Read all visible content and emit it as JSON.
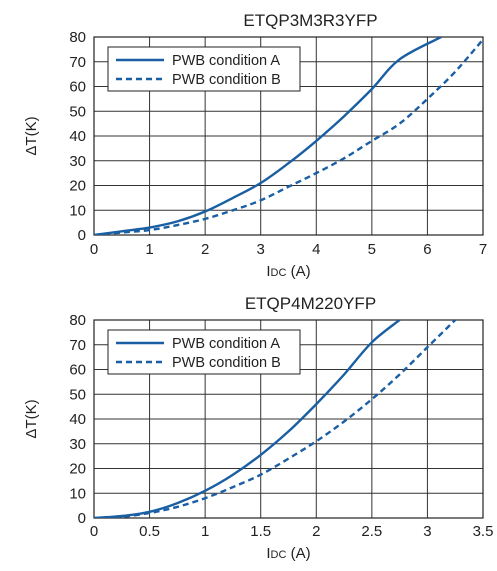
{
  "chart_data": [
    {
      "type": "line",
      "title": "ETQP3M3R3YFP",
      "xlabel": "IDC (A)",
      "xlabel_main": "I",
      "xlabel_sub": "DC",
      "xlabel_unit": " (A)",
      "ylabel": "ΔT(K)",
      "xlim": [
        0,
        7
      ],
      "ylim": [
        0,
        80
      ],
      "x_ticks": [
        0,
        1,
        2,
        3,
        4,
        5,
        6,
        7
      ],
      "y_ticks": [
        0,
        10,
        20,
        30,
        40,
        50,
        60,
        70,
        80
      ],
      "grid": true,
      "legend_position": "top-left",
      "series": [
        {
          "name": "PWB condition A",
          "style": "solid",
          "color": "#1a5fa3",
          "x": [
            0,
            0.5,
            1,
            1.5,
            2,
            2.5,
            3,
            3.5,
            4,
            4.5,
            5,
            5.5,
            6.25
          ],
          "y": [
            0,
            1.5,
            3,
            5.5,
            9.5,
            15,
            21,
            29,
            38,
            48,
            59,
            71,
            80
          ]
        },
        {
          "name": "PWB condition B",
          "style": "dashed",
          "color": "#1a5fa3",
          "x": [
            0,
            0.5,
            1,
            1.5,
            2,
            2.5,
            3,
            3.5,
            4,
            4.5,
            5,
            5.5,
            6,
            6.5,
            7
          ],
          "y": [
            0,
            1,
            2,
            4,
            6.5,
            10,
            14,
            19.5,
            25,
            31,
            38,
            45,
            55,
            66,
            79
          ]
        }
      ]
    },
    {
      "type": "line",
      "title": "ETQP4M220YFP",
      "xlabel": "IDC (A)",
      "xlabel_main": "I",
      "xlabel_sub": "DC",
      "xlabel_unit": " (A)",
      "ylabel": "ΔT(K)",
      "xlim": [
        0,
        3.5
      ],
      "ylim": [
        0,
        80
      ],
      "x_ticks": [
        0,
        0.5,
        1,
        1.5,
        2,
        2.5,
        3,
        3.5
      ],
      "y_ticks": [
        0,
        10,
        20,
        30,
        40,
        50,
        60,
        70,
        80
      ],
      "grid": true,
      "legend_position": "top-left",
      "series": [
        {
          "name": "PWB condition A",
          "style": "solid",
          "color": "#1a5fa3",
          "x": [
            0,
            0.25,
            0.5,
            0.75,
            1,
            1.25,
            1.5,
            1.75,
            2,
            2.25,
            2.5,
            2.75
          ],
          "y": [
            0,
            0.8,
            2.5,
            6,
            11,
            17.5,
            25.5,
            35,
            46,
            58,
            71,
            80
          ]
        },
        {
          "name": "PWB condition B",
          "style": "dashed",
          "color": "#1a5fa3",
          "x": [
            0,
            0.25,
            0.5,
            0.75,
            1,
            1.25,
            1.5,
            1.75,
            2,
            2.25,
            2.5,
            2.75,
            3,
            3.25
          ],
          "y": [
            0,
            0.5,
            2,
            4.5,
            8,
            12.5,
            17.5,
            24,
            31,
            39,
            48,
            58,
            69,
            80
          ]
        }
      ]
    }
  ]
}
